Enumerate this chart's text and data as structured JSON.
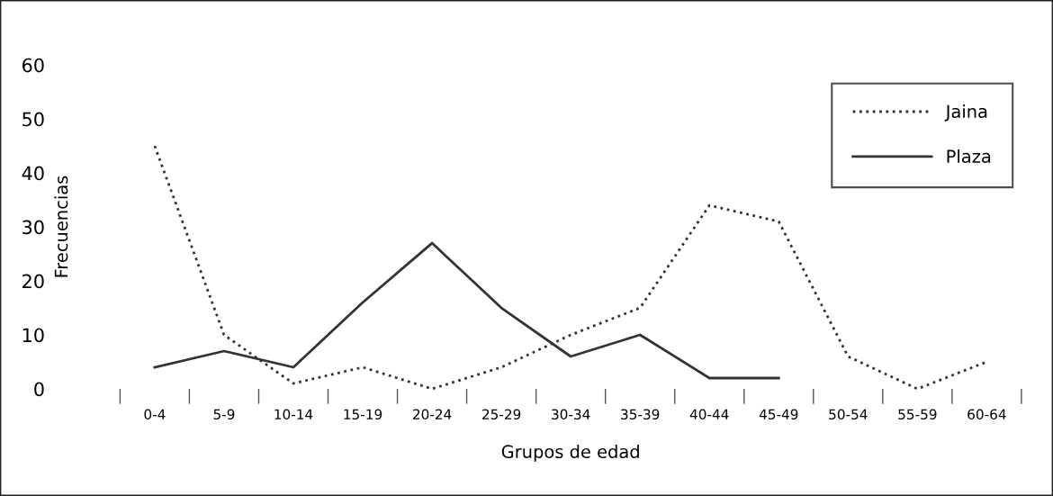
{
  "chart_data": {
    "type": "line",
    "xlabel": "Grupos de edad",
    "ylabel": "Frecuencias",
    "categories": [
      "0-4",
      "5-9",
      "10-14",
      "15-19",
      "20-24",
      "25-29",
      "30-34",
      "35-39",
      "40-44",
      "45-49",
      "50-54",
      "55-59",
      "60-64"
    ],
    "series": [
      {
        "name": "Jaina",
        "color": "#333333",
        "line_style": "dotted",
        "values": [
          45,
          10,
          1,
          4,
          0,
          4,
          10,
          15,
          34,
          31,
          6,
          0,
          5
        ]
      },
      {
        "name": "Plaza",
        "color": "#333333",
        "line_style": "solid",
        "values": [
          4,
          7,
          4,
          16,
          27,
          15,
          6,
          10,
          2,
          2,
          null,
          null,
          null
        ]
      }
    ],
    "ylim": [
      0,
      60
    ],
    "yticks": [
      0,
      10,
      20,
      30,
      40,
      50,
      60
    ],
    "grid": false,
    "legend": "top right",
    "marker": "none"
  }
}
